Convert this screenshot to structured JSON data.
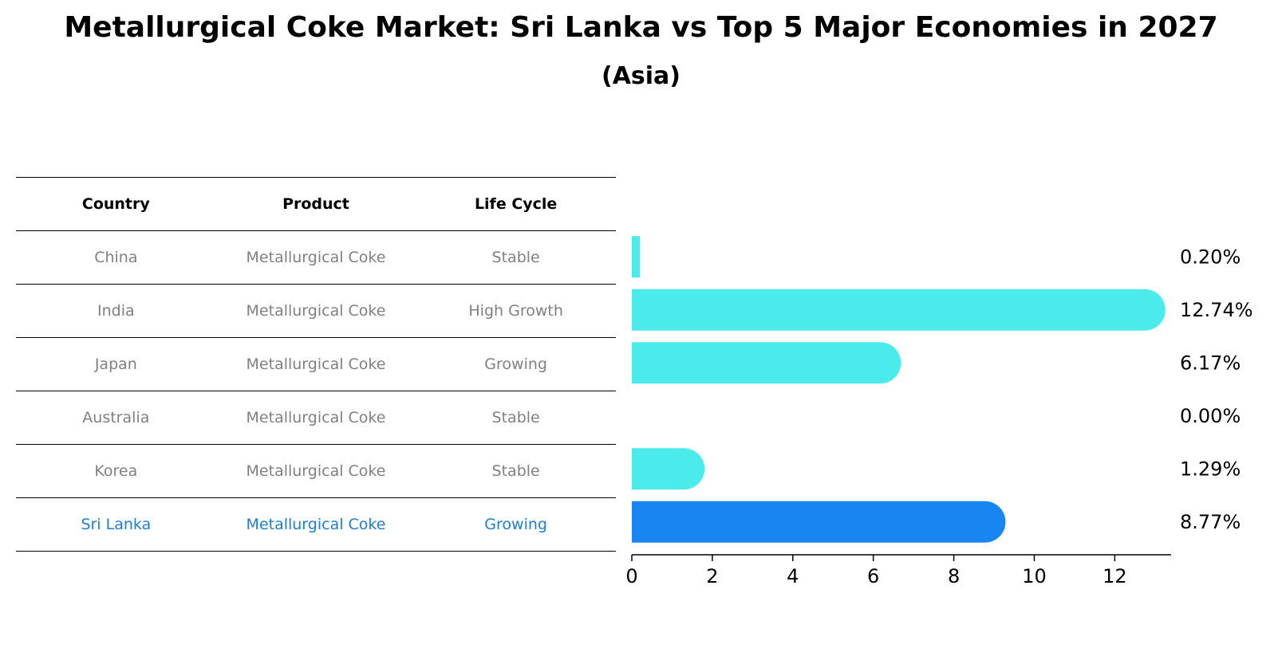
{
  "title": "Metallurgical Coke Market: Sri Lanka vs Top 5 Major Economies in 2027",
  "subtitle": "(Asia)",
  "table": {
    "headers": [
      "Country",
      "Product",
      "Life Cycle"
    ],
    "rows": [
      [
        "China",
        "Metallurgical Coke",
        "Stable"
      ],
      [
        "India",
        "Metallurgical Coke",
        "High Growth"
      ],
      [
        "Japan",
        "Metallurgical Coke",
        "Growing"
      ],
      [
        "Australia",
        "Metallurgical Coke",
        "Stable"
      ],
      [
        "Korea",
        "Metallurgical Coke",
        "Stable"
      ],
      [
        "Sri Lanka",
        "Metallurgical Coke",
        "Growing"
      ]
    ],
    "highlight_row": 5
  },
  "colors": {
    "bar": "#4cebeb",
    "highlight_bar": "#1985f0",
    "highlight_text": "#1a7fd4",
    "muted_text": "#808080"
  },
  "chart_data": {
    "type": "bar",
    "orientation": "horizontal",
    "categories": [
      "China",
      "India",
      "Japan",
      "Australia",
      "Korea",
      "Sri Lanka"
    ],
    "values": [
      0.2,
      12.74,
      6.17,
      0.0,
      1.29,
      8.77
    ],
    "value_labels": [
      "0.20%",
      "12.74%",
      "6.17%",
      "0.00%",
      "1.29%",
      "8.77%"
    ],
    "xlim": [
      0,
      13.4
    ],
    "xticks": [
      0,
      2,
      4,
      6,
      8,
      10,
      12
    ],
    "xtick_labels": [
      "0",
      "2",
      "4",
      "6",
      "8",
      "10",
      "12"
    ],
    "highlight_index": 5
  }
}
